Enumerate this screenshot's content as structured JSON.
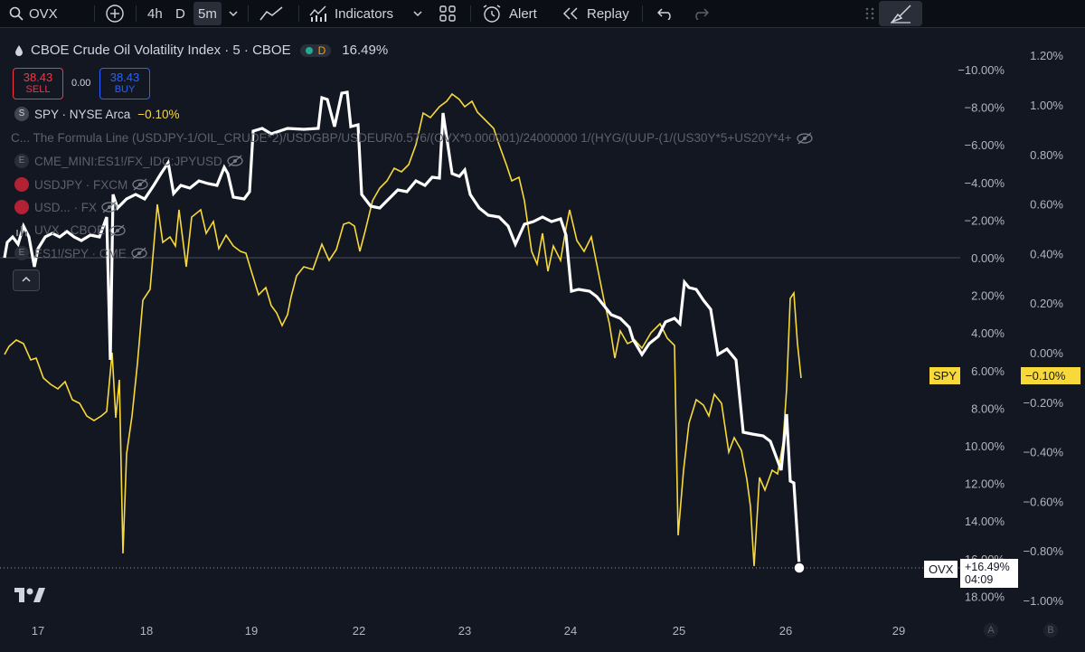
{
  "toolbar": {
    "symbol": "OVX",
    "intervals": [
      "4h",
      "D",
      "5m"
    ],
    "indicators_label": "Indicators",
    "alert_label": "Alert",
    "replay_label": "Replay"
  },
  "legend": {
    "main_title": "CBOE Crude Oil Volatility Index · 5 · CBOE",
    "main_badge": "D",
    "main_change": "16.49%",
    "sell_price": "38.43",
    "sell_label": "SELL",
    "spread": "0.00",
    "buy_price": "38.43",
    "buy_label": "BUY",
    "rows": [
      {
        "icon": "S",
        "text": "SPY · NYSE Arca",
        "value": "−0.10%"
      },
      {
        "icon": "C",
        "text": "C...   The Formula Line (USDJPY-1/OIL_CRUDE*2)/USDGBP/USDEUR/0.576/(OVX*0.000001)/24000000 1/(HYG/(UUP-(1/(US30Y*5+US20Y*4+",
        "value": ""
      },
      {
        "icon": "E",
        "text": "CME_MINI:ES1!/FX_IDC:JPYUSD",
        "value": ""
      },
      {
        "icon": "flag",
        "text": "USDJPY · FXCM",
        "value": ""
      },
      {
        "icon": "flag",
        "text": "USD... · FX",
        "value": ""
      },
      {
        "icon": "bars",
        "text": "UVX · CBOE",
        "value": ""
      },
      {
        "icon": "E",
        "text": "ES1!/SPY · CME",
        "value": ""
      }
    ]
  },
  "axes": {
    "left_scale": [
      "−10.00%",
      "−8.00%",
      "−6.00%",
      "−4.00%",
      "−2.00%",
      "0.00%",
      "2.00%",
      "4.00%",
      "6.00%",
      "8.00%",
      "10.00%",
      "12.00%",
      "14.00%",
      "16.00%",
      "18.00%"
    ],
    "right_scale": [
      "1.20%",
      "1.00%",
      "0.80%",
      "0.60%",
      "0.40%",
      "0.20%",
      "0.00%",
      "−0.20%",
      "−0.40%",
      "−0.60%",
      "−0.80%",
      "−1.00%"
    ],
    "x_labels": [
      "17",
      "18",
      "19",
      "22",
      "23",
      "24",
      "25",
      "26",
      "29"
    ],
    "bottom_right": [
      "A",
      "B"
    ]
  },
  "labels": {
    "spy_tag": "SPY",
    "spy_value": "−0.10%",
    "ovx_tag": "OVX",
    "ovx_value": "+16.49%",
    "ovx_time": "04:09"
  },
  "colors": {
    "ovx": "#ffffff",
    "spy": "#f7d93b",
    "background": "#131722",
    "sell": "#f23645",
    "buy": "#2962ff"
  },
  "chart_data": {
    "type": "line",
    "x": [
      "17",
      "18",
      "19",
      "22",
      "23",
      "24",
      "25",
      "26"
    ],
    "series": [
      {
        "name": "OVX",
        "values": [
          0.5,
          -3.5,
          -4.5,
          -8.5,
          -6.5,
          -1.0,
          1.5,
          16.49
        ]
      },
      {
        "name": "SPY",
        "values": [
          0.0,
          0.6,
          0.35,
          0.95,
          1.05,
          0.5,
          -0.6,
          -0.1
        ]
      }
    ],
    "ylim_left": [
      -10.0,
      18.0
    ],
    "ylim_right": [
      -1.0,
      1.2
    ]
  }
}
